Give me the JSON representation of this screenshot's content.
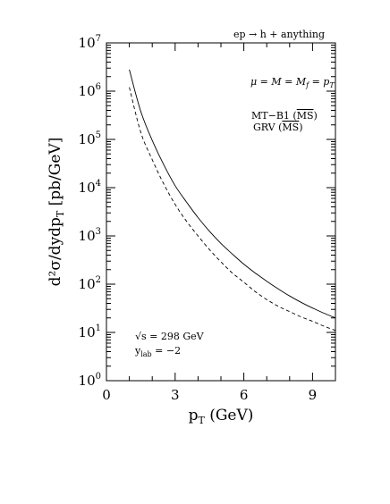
{
  "chart_data": {
    "type": "line",
    "title": "ep → h + anything",
    "xlabel": "p",
    "xlabel_sub": "T",
    "xlabel_unit": " (GeV)",
    "ylabel": "d²σ/dydp",
    "ylabel_sub": "T",
    "ylabel_unit": "   [pb/GeV]",
    "xlim": [
      0,
      10
    ],
    "ylim": [
      1,
      10000000
    ],
    "yscale": "log",
    "grid": false,
    "x_ticks": [
      0,
      3,
      6,
      9
    ],
    "x_tick_labels": [
      "0",
      "3",
      "6",
      "9"
    ],
    "y_ticks": [
      {
        "exp": 0,
        "base": "10",
        "sup": "0"
      },
      {
        "exp": 1,
        "base": "10",
        "sup": "1"
      },
      {
        "exp": 2,
        "base": "10",
        "sup": "2"
      },
      {
        "exp": 3,
        "base": "10",
        "sup": "3"
      },
      {
        "exp": 4,
        "base": "10",
        "sup": "4"
      },
      {
        "exp": 5,
        "base": "10",
        "sup": "5"
      },
      {
        "exp": 6,
        "base": "10",
        "sup": "6"
      },
      {
        "exp": 7,
        "base": "10",
        "sup": "7"
      }
    ],
    "series": [
      {
        "style": "solid",
        "x": [
          1.0,
          1.5,
          2.0,
          2.5,
          3.0,
          3.5,
          4.0,
          4.5,
          5.0,
          5.5,
          6.0,
          6.5,
          7.0,
          7.5,
          8.0,
          8.5,
          9.0,
          9.5,
          10.0
        ],
        "y": [
          2800000,
          380000,
          95000,
          30000,
          11000,
          5000,
          2400,
          1250,
          700,
          420,
          260,
          170,
          115,
          80,
          57,
          42,
          32,
          25,
          20
        ]
      },
      {
        "style": "dashed",
        "x": [
          1.0,
          1.5,
          2.0,
          2.5,
          3.0,
          3.5,
          4.0,
          4.5,
          5.0,
          5.5,
          6.0,
          6.5,
          7.0,
          7.5,
          8.0,
          8.5,
          9.0,
          9.5,
          10.0
        ],
        "y": [
          1200000,
          140000,
          38000,
          12000,
          4500,
          2000,
          1000,
          520,
          290,
          170,
          110,
          70,
          48,
          35,
          27,
          21,
          17,
          13.5,
          11
        ]
      }
    ],
    "annotations": {
      "scale_line": "μ = M = M",
      "scale_line_sub1": "f",
      "scale_line_tail": " = p",
      "scale_line_sub2": "T",
      "pdf1_prefix": "MT−B1 (",
      "pdf1_scheme": "MS",
      "pdf1_suffix": ")",
      "pdf2_prefix": "GRV   (",
      "pdf2_scheme": "MS",
      "pdf2_suffix": ")",
      "energy_line": "√s  = 298 GeV",
      "ylab_prefix": "y",
      "ylab_sub": "lab",
      "ylab_tail": " = −2"
    }
  }
}
